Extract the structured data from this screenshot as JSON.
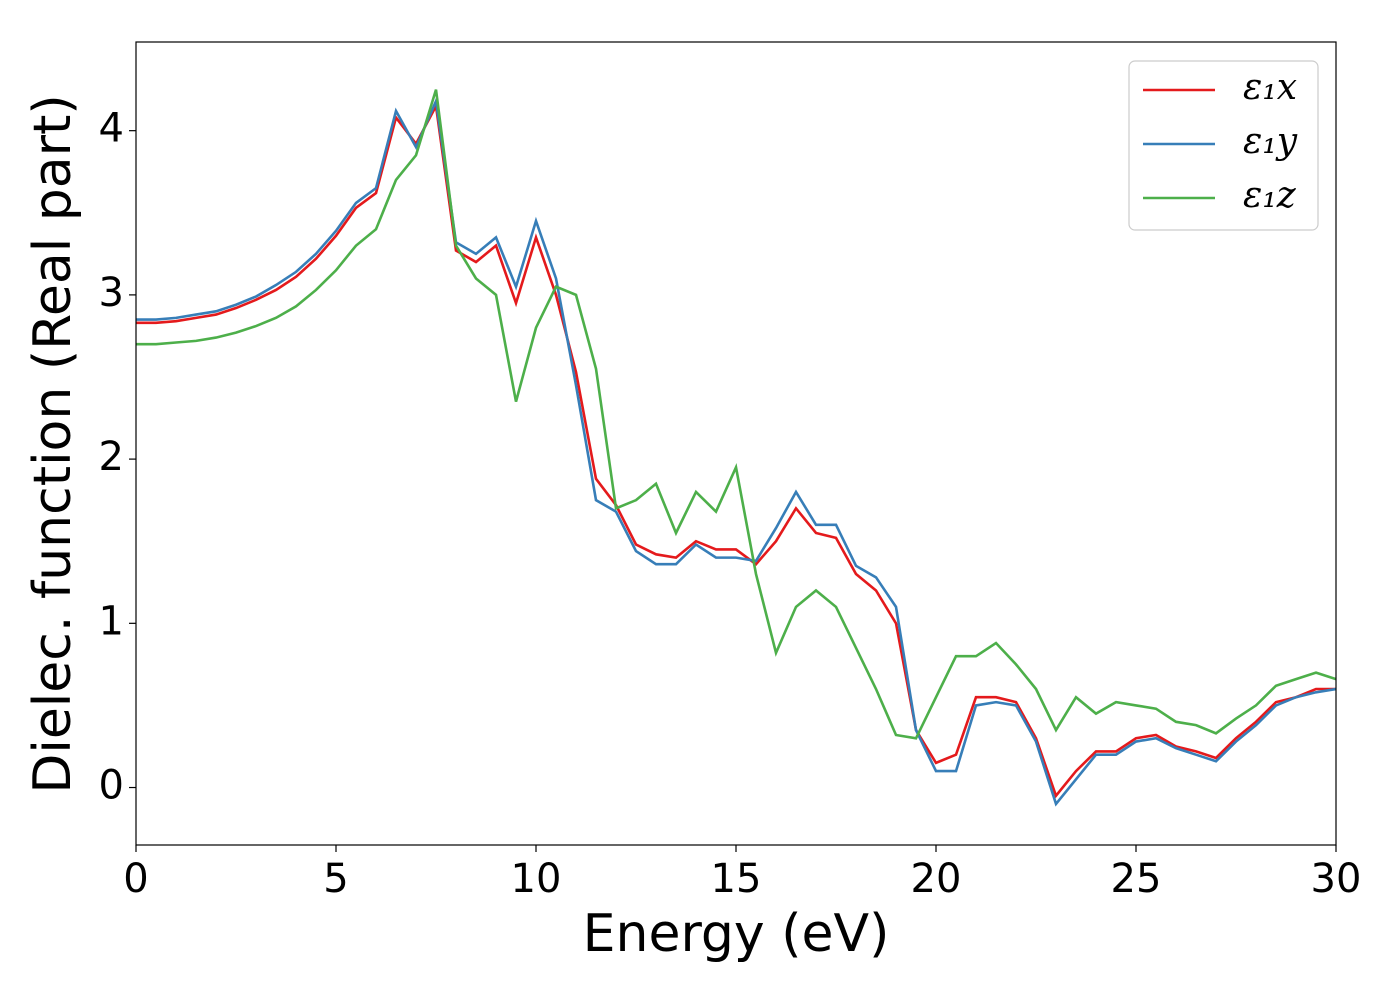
{
  "chart_data": {
    "type": "line",
    "x_label": "Energy (eV)",
    "y_label": "Dielec. function (Real part)",
    "x": [
      0,
      0.5,
      1,
      1.5,
      2,
      2.5,
      3,
      3.5,
      4,
      4.5,
      5,
      5.5,
      6,
      6.5,
      7,
      7.5,
      8,
      8.5,
      9,
      9.5,
      10,
      10.5,
      11,
      11.5,
      12,
      12.5,
      13,
      13.5,
      14,
      14.5,
      15,
      15.5,
      16,
      16.5,
      17,
      17.5,
      18,
      18.5,
      19,
      19.5,
      20,
      20.5,
      21,
      21.5,
      22,
      22.5,
      23,
      23.5,
      24,
      24.5,
      25,
      25.5,
      26,
      26.5,
      27,
      27.5,
      28,
      28.5,
      29,
      29.5,
      30
    ],
    "series": [
      {
        "name": "ε₁x",
        "color": "#e41a1c",
        "values": [
          2.83,
          2.83,
          2.84,
          2.86,
          2.88,
          2.92,
          2.97,
          3.03,
          3.11,
          3.22,
          3.36,
          3.53,
          3.62,
          4.08,
          3.92,
          4.15,
          3.27,
          3.2,
          3.3,
          2.95,
          3.35,
          3.0,
          2.53,
          1.88,
          1.72,
          1.48,
          1.42,
          1.4,
          1.5,
          1.45,
          1.45,
          1.36,
          1.5,
          1.7,
          1.55,
          1.52,
          1.3,
          1.2,
          1.0,
          0.35,
          0.15,
          0.2,
          0.55,
          0.55,
          0.52,
          0.3,
          -0.05,
          0.1,
          0.22,
          0.22,
          0.3,
          0.32,
          0.25,
          0.22,
          0.18,
          0.3,
          0.4,
          0.52,
          0.55,
          0.6,
          0.6
        ]
      },
      {
        "name": "ε₁y",
        "color": "#377eb8",
        "values": [
          2.85,
          2.85,
          2.86,
          2.88,
          2.9,
          2.94,
          2.99,
          3.06,
          3.14,
          3.25,
          3.39,
          3.56,
          3.65,
          4.12,
          3.9,
          4.18,
          3.32,
          3.25,
          3.35,
          3.05,
          3.45,
          3.1,
          2.45,
          1.75,
          1.68,
          1.44,
          1.36,
          1.36,
          1.48,
          1.4,
          1.4,
          1.38,
          1.58,
          1.8,
          1.6,
          1.6,
          1.35,
          1.28,
          1.1,
          0.35,
          0.1,
          0.1,
          0.5,
          0.52,
          0.5,
          0.28,
          -0.1,
          0.05,
          0.2,
          0.2,
          0.28,
          0.3,
          0.24,
          0.2,
          0.16,
          0.28,
          0.38,
          0.5,
          0.55,
          0.58,
          0.6
        ]
      },
      {
        "name": "ε₁z",
        "color": "#4daf4a",
        "values": [
          2.7,
          2.7,
          2.71,
          2.72,
          2.74,
          2.77,
          2.81,
          2.86,
          2.93,
          3.03,
          3.15,
          3.3,
          3.4,
          3.7,
          3.85,
          4.25,
          3.3,
          3.1,
          3.0,
          2.35,
          2.8,
          3.05,
          3.0,
          2.55,
          1.7,
          1.75,
          1.85,
          1.55,
          1.8,
          1.68,
          1.95,
          1.3,
          0.82,
          1.1,
          1.2,
          1.1,
          0.85,
          0.6,
          0.32,
          0.3,
          0.55,
          0.8,
          0.8,
          0.88,
          0.75,
          0.6,
          0.35,
          0.55,
          0.45,
          0.52,
          0.5,
          0.48,
          0.4,
          0.38,
          0.33,
          0.42,
          0.5,
          0.62,
          0.66,
          0.7,
          0.66
        ]
      }
    ],
    "xlim": [
      0,
      30
    ],
    "xticks": [
      0,
      5,
      10,
      15,
      20,
      25,
      30
    ],
    "ylim": [
      -0.35,
      4.54
    ],
    "yticks": [
      0,
      1,
      2,
      3,
      4
    ],
    "legend": "upper right",
    "grid": false
  }
}
